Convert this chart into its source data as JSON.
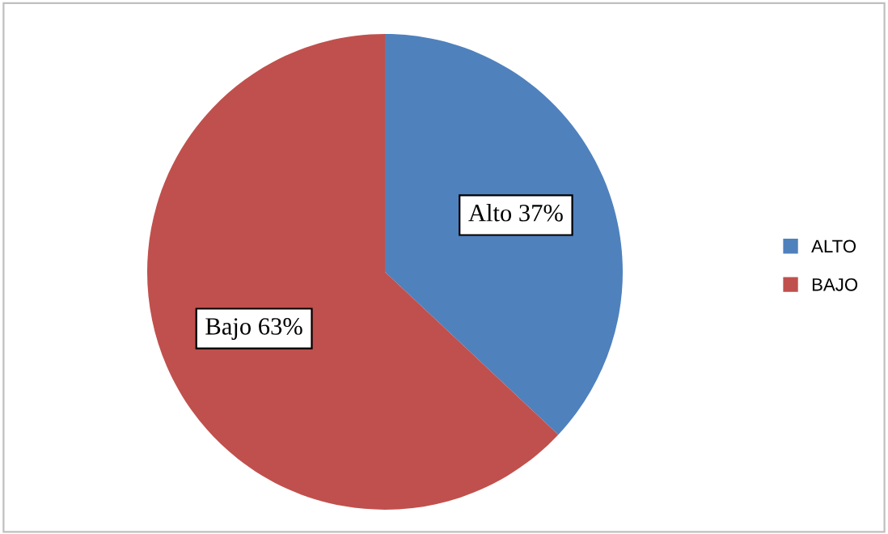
{
  "chart_data": {
    "type": "pie",
    "categories": [
      "ALTO",
      "BAJO"
    ],
    "values": [
      37,
      63
    ],
    "colors": [
      "#4f81bd",
      "#c0504d"
    ],
    "value_labels": [
      "Alto 37%",
      "Bajo 63%"
    ],
    "legend": "right"
  }
}
